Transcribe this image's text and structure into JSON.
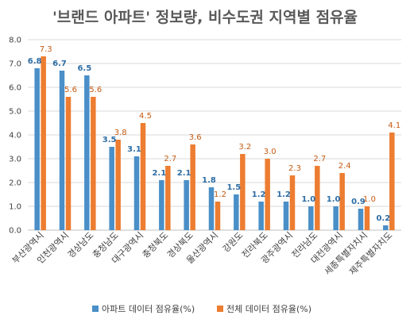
{
  "chart_data": {
    "type": "bar",
    "title": "'브랜드 아파트' 정보량, 비수도권 지역별 점유율",
    "xlabel": "",
    "ylabel": "",
    "ylim": [
      0,
      8
    ],
    "yticks": [
      "0.0",
      "1.0",
      "2.0",
      "3.0",
      "4.0",
      "5.0",
      "6.0",
      "7.0",
      "8.0"
    ],
    "grid": true,
    "legend_position": "bottom",
    "categories": [
      "부산광역시",
      "인천광역시",
      "경상남도",
      "충청남도",
      "대구광역시",
      "충청북도",
      "경상북도",
      "울산광역시",
      "강원도",
      "전라북도",
      "광주광역시",
      "전라남도",
      "대전광역시",
      "세종특별자치시",
      "제주특별자치도"
    ],
    "series": [
      {
        "name": "아파트 데이터 점유율(%)",
        "color": "#4a8fc7",
        "label_color": "#2e6da4",
        "values": [
          6.8,
          6.7,
          6.5,
          3.5,
          3.1,
          2.1,
          2.1,
          1.8,
          1.5,
          1.2,
          1.2,
          1.0,
          1.0,
          0.9,
          0.2
        ],
        "labels": [
          "6.8",
          "6.7",
          "6.5",
          "3.5",
          "3.1",
          "2.1",
          "2.1",
          "1.8",
          "1.5",
          "1.2",
          "1.2",
          "1.0",
          "1.0",
          "0.9",
          "0.2"
        ]
      },
      {
        "name": "전체 데이터 점유율(%)",
        "color": "#ed7d31",
        "label_color": "#c55a11",
        "values": [
          7.3,
          5.6,
          5.6,
          3.8,
          4.5,
          2.7,
          3.6,
          1.2,
          3.2,
          3.0,
          2.3,
          2.7,
          2.4,
          1.0,
          4.1
        ],
        "labels": [
          "7.3",
          "5.6",
          "5.6",
          "3.8",
          "4.5",
          "2.7",
          "3.6",
          "1.2",
          "3.2",
          "3.0",
          "2.3",
          "2.7",
          "2.4",
          "1.0",
          "4.1"
        ]
      }
    ]
  }
}
